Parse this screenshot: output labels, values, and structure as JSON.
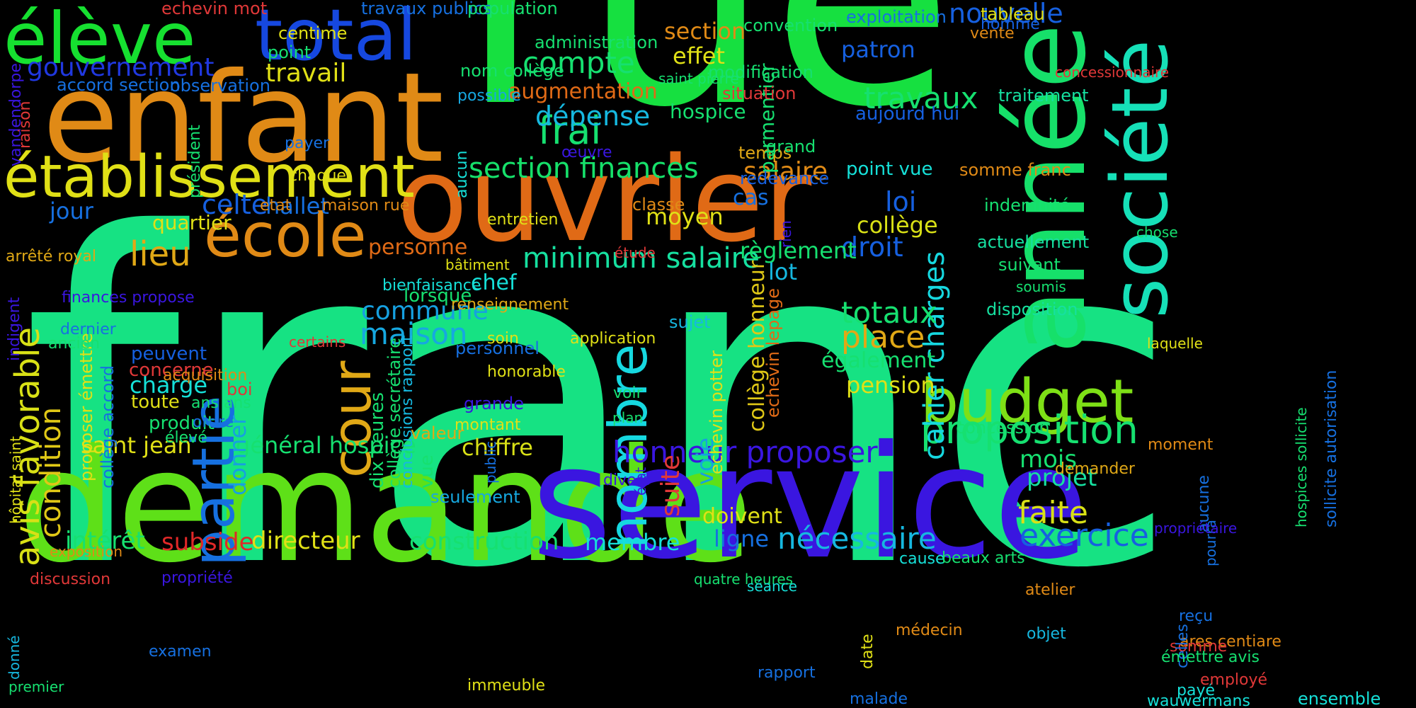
{
  "words": [
    {
      "text": "franc",
      "color": "#16e283"
    },
    {
      "text": "rue",
      "color": "#16e040"
    },
    {
      "text": "demande",
      "color": "#5ee018"
    },
    {
      "text": "service",
      "color": "#3a16e0"
    },
    {
      "text": "enfant",
      "color": "#e08a16"
    },
    {
      "text": "ouvrier",
      "color": "#e06a16"
    },
    {
      "text": "année",
      "color": "#16e06a"
    },
    {
      "text": "société",
      "color": "#16e0b8"
    },
    {
      "text": "établissement",
      "color": "#e0e016"
    },
    {
      "text": "élève",
      "color": "#16e030"
    },
    {
      "text": "total",
      "color": "#1648e0"
    },
    {
      "text": "école",
      "color": "#e08a16"
    },
    {
      "text": "partie",
      "color": "#1670e0"
    },
    {
      "text": "cour",
      "color": "#e0a816"
    },
    {
      "text": "nombre",
      "color": "#16d8e0"
    },
    {
      "text": "budget",
      "color": "#7ee016"
    },
    {
      "text": "proposition",
      "color": "#16e070"
    },
    {
      "text": "honneur proposer",
      "color": "#3a16e0"
    },
    {
      "text": "avis favorable",
      "color": "#d8e016"
    },
    {
      "text": "compte",
      "color": "#16e070"
    },
    {
      "text": "section finances",
      "color": "#16e06a"
    },
    {
      "text": "minimum salaire",
      "color": "#16e0a0"
    },
    {
      "text": "nouvelle",
      "color": "#1660e0"
    },
    {
      "text": "travaux",
      "color": "#16e070"
    },
    {
      "text": "frai",
      "color": "#16e070"
    },
    {
      "text": "dépense",
      "color": "#16b8e0"
    },
    {
      "text": "salaire",
      "color": "#e08a16"
    },
    {
      "text": "travail",
      "color": "#e0e016"
    },
    {
      "text": "lieu",
      "color": "#e0a816"
    },
    {
      "text": "gouvernement",
      "color": "#2038e0"
    },
    {
      "text": "cahier charges",
      "color": "#16d8e0"
    },
    {
      "text": "commune",
      "color": "#16a0e0"
    },
    {
      "text": "maison",
      "color": "#16a8e0"
    },
    {
      "text": "condition",
      "color": "#e0c816"
    },
    {
      "text": "totaux",
      "color": "#16e070"
    },
    {
      "text": "place",
      "color": "#e0a816"
    },
    {
      "text": "faite",
      "color": "#d8e016"
    },
    {
      "text": "nécessaire",
      "color": "#16b8e0"
    },
    {
      "text": "exercice",
      "color": "#1660e0"
    },
    {
      "text": "projet",
      "color": "#16e0a0"
    },
    {
      "text": "mois",
      "color": "#16e070"
    },
    {
      "text": "directeur",
      "color": "#e0e016"
    },
    {
      "text": "construction",
      "color": "#16e070"
    },
    {
      "text": "subside",
      "color": "#e02828"
    },
    {
      "text": "intérêt",
      "color": "#16e070"
    },
    {
      "text": "membre",
      "color": "#16e0d8"
    },
    {
      "text": "ligne",
      "color": "#1670e0"
    },
    {
      "text": "doivent",
      "color": "#e0e016"
    },
    {
      "text": "saint jean",
      "color": "#e0e016"
    },
    {
      "text": "général hospice",
      "color": "#16e070"
    },
    {
      "text": "chiffre",
      "color": "#d8e016"
    },
    {
      "text": "droit",
      "color": "#1660e0"
    },
    {
      "text": "loi",
      "color": "#1660e0"
    },
    {
      "text": "collège",
      "color": "#d8e016"
    },
    {
      "text": "règlement",
      "color": "#16e070"
    },
    {
      "text": "lot",
      "color": "#16b8e0"
    },
    {
      "text": "suite",
      "color": "#e03838"
    },
    {
      "text": "voie",
      "color": "#16a0e0"
    },
    {
      "text": "donner",
      "color": "#16a0e0"
    },
    {
      "text": "moyen",
      "color": "#e0e016"
    },
    {
      "text": "classe",
      "color": "#e08a16"
    },
    {
      "text": "personne",
      "color": "#e06a16"
    },
    {
      "text": "celte",
      "color": "#1660e0"
    },
    {
      "text": "hallet",
      "color": "#1670e0"
    },
    {
      "text": "jour",
      "color": "#1670e0"
    },
    {
      "text": "quartier",
      "color": "#e0e016"
    },
    {
      "text": "charge",
      "color": "#16e0d8"
    },
    {
      "text": "pension",
      "color": "#e0e016"
    },
    {
      "text": "également",
      "color": "#16e070"
    },
    {
      "text": "effet",
      "color": "#e0e016"
    },
    {
      "text": "section",
      "color": "#e08a16"
    },
    {
      "text": "augmentation",
      "color": "#e06a16"
    },
    {
      "text": "hospice",
      "color": "#16e070"
    },
    {
      "text": "patron",
      "color": "#1660e0"
    },
    {
      "text": "aujourd hui",
      "color": "#1660e0"
    },
    {
      "text": "traitement",
      "color": "#16e0a0"
    },
    {
      "text": "indemnité",
      "color": "#16e070"
    },
    {
      "text": "somme franc",
      "color": "#e08a16"
    },
    {
      "text": "actuellement",
      "color": "#16e0a0"
    },
    {
      "text": "suivant",
      "color": "#16e070"
    },
    {
      "text": "disposition",
      "color": "#16e0a0"
    },
    {
      "text": "concession",
      "color": "#16e070"
    },
    {
      "text": "point vue",
      "color": "#16e0d8"
    },
    {
      "text": "parmentier",
      "color": "#16e070"
    },
    {
      "text": "collège honneur",
      "color": "#e0c816"
    },
    {
      "text": "echevin lepage",
      "color": "#e06a16"
    },
    {
      "text": "echevin potter",
      "color": "#e0e016"
    },
    {
      "text": "sujet",
      "color": "#16b8e0"
    },
    {
      "text": "cas",
      "color": "#1670e0"
    },
    {
      "text": "seulement",
      "color": "#16a8e0"
    },
    {
      "text": "produit",
      "color": "#16e070"
    },
    {
      "text": "toute",
      "color": "#e0e016"
    },
    {
      "text": "concerne",
      "color": "#e03838"
    },
    {
      "text": "peuvent",
      "color": "#1660e0"
    },
    {
      "text": "dix heures",
      "color": "#16e070"
    },
    {
      "text": "collège secrétaire",
      "color": "#16e070"
    },
    {
      "text": "conclusions rapport",
      "color": "#16b8e0"
    },
    {
      "text": "lorsque",
      "color": "#16e070"
    },
    {
      "text": "chef",
      "color": "#16e0d8"
    },
    {
      "text": "personnel",
      "color": "#1670e0"
    },
    {
      "text": "grande",
      "color": "#3a16e0"
    },
    {
      "text": "montant",
      "color": "#e0e016"
    },
    {
      "text": "valeur",
      "color": "#e0a816"
    },
    {
      "text": "vue",
      "color": "#16e070"
    },
    {
      "text": "proposer émettre",
      "color": "#e0e016"
    },
    {
      "text": "collège accord",
      "color": "#1670e0"
    },
    {
      "text": "administration",
      "color": "#16e070"
    },
    {
      "text": "convention",
      "color": "#16e070"
    },
    {
      "text": "modification",
      "color": "#16e070"
    },
    {
      "text": "situation",
      "color": "#e03838"
    },
    {
      "text": "temps",
      "color": "#e0a816"
    },
    {
      "text": "redevance",
      "color": "#1660e0"
    },
    {
      "text": "grand",
      "color": "#16e070"
    },
    {
      "text": "saint pierre",
      "color": "#16e070"
    },
    {
      "text": "nom collège",
      "color": "#16e070"
    },
    {
      "text": "accord section",
      "color": "#1670e0"
    },
    {
      "text": "observation",
      "color": "#1670e0"
    },
    {
      "text": "echevin mot",
      "color": "#e03838"
    },
    {
      "text": "travaux publics",
      "color": "#1670e0"
    },
    {
      "text": "population",
      "color": "#16e070"
    },
    {
      "text": "exploitation",
      "color": "#1670e0"
    },
    {
      "text": "tableau",
      "color": "#e0e016"
    },
    {
      "text": "homme",
      "color": "#1660e0"
    },
    {
      "text": "vente",
      "color": "#e08a16"
    },
    {
      "text": "concessionnaire",
      "color": "#e03838"
    },
    {
      "text": "centime",
      "color": "#e0e016"
    },
    {
      "text": "point",
      "color": "#16e070"
    },
    {
      "text": "possible",
      "color": "#16a8e0"
    },
    {
      "text": "œuvre",
      "color": "#3a16e0"
    },
    {
      "text": "payer",
      "color": "#1670e0"
    },
    {
      "text": "chaque",
      "color": "#e0e016"
    },
    {
      "text": "etat",
      "color": "#e08a16"
    },
    {
      "text": "maison rue",
      "color": "#e08a16"
    },
    {
      "text": "entretien",
      "color": "#e0e016"
    },
    {
      "text": "aucun",
      "color": "#16e0d8"
    },
    {
      "text": "président",
      "color": "#16e070"
    },
    {
      "text": "vandendorpe",
      "color": "#3a16e0"
    },
    {
      "text": "raison",
      "color": "#e03838"
    },
    {
      "text": "arrêté royal",
      "color": "#e0a816"
    },
    {
      "text": "indigent",
      "color": "#3a16e0"
    },
    {
      "text": "finances propose",
      "color": "#3a16e0"
    },
    {
      "text": "dernier",
      "color": "#1670e0"
    },
    {
      "text": "ancien",
      "color": "#16e070"
    },
    {
      "text": "certains",
      "color": "#e03838"
    },
    {
      "text": "bienfaisance",
      "color": "#16e0d8"
    },
    {
      "text": "renseignement",
      "color": "#e0a816"
    },
    {
      "text": "soin",
      "color": "#e0e016"
    },
    {
      "text": "application",
      "color": "#e0e016"
    },
    {
      "text": "honorable",
      "color": "#e0e016"
    },
    {
      "text": "bâtiment",
      "color": "#e0e016"
    },
    {
      "text": "étude",
      "color": "#e03838"
    },
    {
      "text": "rien",
      "color": "#3a16e0"
    },
    {
      "text": "chose",
      "color": "#16e070"
    },
    {
      "text": "soumis",
      "color": "#16e070"
    },
    {
      "text": "laquelle",
      "color": "#e0e016"
    },
    {
      "text": "acquisition",
      "color": "#e08a16"
    },
    {
      "text": "ans ans",
      "color": "#16e070"
    },
    {
      "text": "ordre",
      "color": "#1670e0"
    },
    {
      "text": "élevé",
      "color": "#16e070"
    },
    {
      "text": "boi",
      "color": "#e03838"
    },
    {
      "text": "voir",
      "color": "#16e070"
    },
    {
      "text": "plan",
      "color": "#16e070"
    },
    {
      "text": "public",
      "color": "#1670e0"
    },
    {
      "text": "état",
      "color": "#3a16e0"
    },
    {
      "text": "divers",
      "color": "#3a16e0"
    },
    {
      "text": "donné",
      "color": "#16b8e0"
    },
    {
      "text": "hôpital saint",
      "color": "#e0e016"
    },
    {
      "text": "exposition",
      "color": "#e08a16"
    },
    {
      "text": "propriété",
      "color": "#3a16e0"
    },
    {
      "text": "discussion",
      "color": "#e03838"
    },
    {
      "text": "examen",
      "color": "#1670e0"
    },
    {
      "text": "premier",
      "color": "#16e070"
    },
    {
      "text": "immeuble",
      "color": "#e0e016"
    },
    {
      "text": "rapport",
      "color": "#1670e0"
    },
    {
      "text": "don",
      "color": "#e03838"
    },
    {
      "text": "date",
      "color": "#e0e016"
    },
    {
      "text": "médecin",
      "color": "#e08a16"
    },
    {
      "text": "malade",
      "color": "#1670e0"
    },
    {
      "text": "quatre heures",
      "color": "#16e070"
    },
    {
      "text": "séance",
      "color": "#16e0d8"
    },
    {
      "text": "cause",
      "color": "#16e0d8"
    },
    {
      "text": "beaux arts",
      "color": "#16e070"
    },
    {
      "text": "atelier",
      "color": "#e08a16"
    },
    {
      "text": "objet",
      "color": "#16b8e0"
    },
    {
      "text": "ares centiare",
      "color": "#e08a16"
    },
    {
      "text": "payé",
      "color": "#16e0d8"
    },
    {
      "text": "somme",
      "color": "#e03838"
    },
    {
      "text": "celles",
      "color": "#1670e0"
    },
    {
      "text": "émettre avis",
      "color": "#16e070"
    },
    {
      "text": "ensemble",
      "color": "#16e0d8"
    },
    {
      "text": "wauwermans",
      "color": "#16e0d8"
    },
    {
      "text": "employé",
      "color": "#e03838"
    },
    {
      "text": "reçu",
      "color": "#1670e0"
    },
    {
      "text": "aucune",
      "color": "#1670e0"
    },
    {
      "text": "pourra",
      "color": "#1670e0"
    },
    {
      "text": "propriétaire",
      "color": "#3a16e0"
    },
    {
      "text": "moment",
      "color": "#e08a16"
    },
    {
      "text": "demander",
      "color": "#e0a816"
    },
    {
      "text": "hospices sollicite",
      "color": "#16e070"
    },
    {
      "text": "sollicite autorisation",
      "color": "#1670e0"
    }
  ]
}
